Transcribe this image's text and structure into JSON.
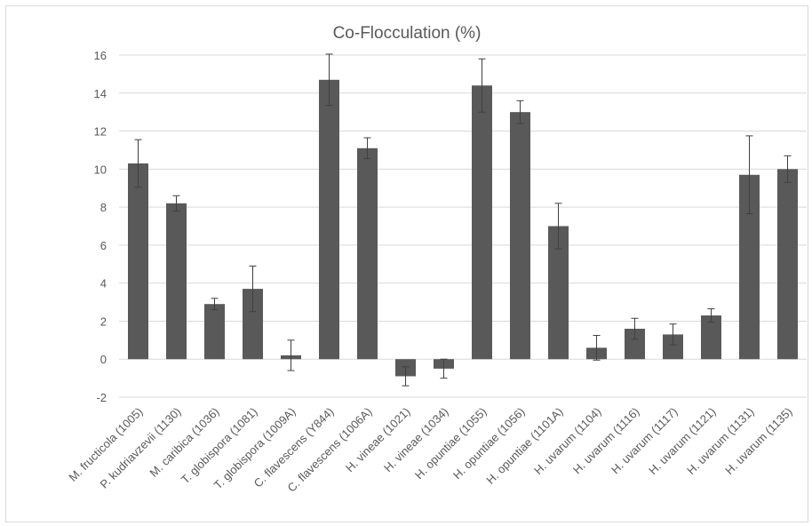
{
  "chart_data": {
    "type": "bar",
    "title": "Co-Flocculation (%)",
    "xlabel": "",
    "ylabel": "",
    "ylim": [
      -2,
      16
    ],
    "yticks": [
      -2,
      0,
      2,
      4,
      6,
      8,
      10,
      12,
      14,
      16
    ],
    "grid": true,
    "bar_color": "#595959",
    "categories": [
      "M. fructicola (1005)",
      "P. kudriavzevii (1130)",
      "M. caribica (1036)",
      "T. globispora (1081)",
      "T. globispora (1009A)",
      "C. flavescens (Y844)",
      "C. flavescens (1006A)",
      "H. vineae (1021)",
      "H. vineae (1034)",
      "H. opuntiae (1055)",
      "H. opuntiae (1056)",
      "H. opuntiae (1101A)",
      "H. uvarum (1104)",
      "H. uvarum (1116)",
      "H. uvarum (1117)",
      "H. uvarum (1121)",
      "H. uvarum (1131)",
      "H. uvarum (1135)"
    ],
    "values": [
      10.3,
      8.2,
      2.9,
      3.7,
      0.2,
      14.7,
      11.1,
      -0.9,
      -0.5,
      14.4,
      13.0,
      7.0,
      0.6,
      1.6,
      1.3,
      2.3,
      9.7,
      10.0
    ],
    "errors": [
      1.25,
      0.4,
      0.3,
      1.2,
      0.8,
      1.35,
      0.55,
      0.5,
      0.5,
      1.4,
      0.6,
      1.2,
      0.65,
      0.55,
      0.55,
      0.35,
      2.05,
      0.7
    ]
  }
}
